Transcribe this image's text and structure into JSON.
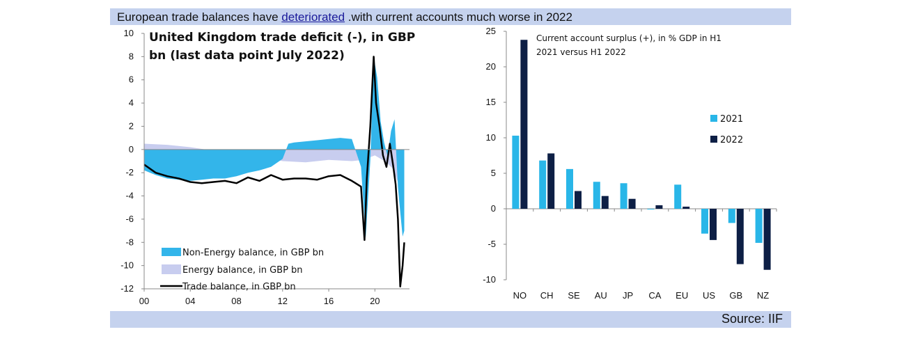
{
  "header": {
    "title_prefix": "European trade balances have ",
    "title_link": "deteriorated",
    "title_suffix": " .with current accounts much worse in 2022"
  },
  "footer": {
    "source": "Source: IIF"
  },
  "colors": {
    "banner": "#c5d2ee",
    "non_energy": "#33b5ea",
    "energy": "#c8cdef",
    "trade": "#000000",
    "bar_2021": "#29b6e8",
    "bar_2022": "#0d1f45"
  },
  "chart_data": [
    {
      "type": "area",
      "title_lines": [
        "United Kingdom trade deficit (-), in GBP",
        "bn (last data point July 2022)"
      ],
      "x_tick_labels": [
        "00",
        "04",
        "08",
        "12",
        "16",
        "20"
      ],
      "x_ticks": [
        2000,
        2004,
        2008,
        2012,
        2016,
        2020
      ],
      "xlim": [
        2000,
        2023
      ],
      "ylim": [
        -12,
        10
      ],
      "y_ticks": [
        10,
        8,
        6,
        4,
        2,
        0,
        -2,
        -4,
        -6,
        -8,
        -10,
        -12
      ],
      "legend_placement": "bottom-left",
      "series": [
        {
          "name": "Non-Energy balance, in GBP bn",
          "x": [
            2000,
            2001,
            2002,
            2003,
            2004,
            2005,
            2006,
            2007,
            2008,
            2009,
            2010,
            2011,
            2012,
            2012.5,
            2013,
            2014,
            2015,
            2016,
            2017,
            2018,
            2018.8,
            2019.2,
            2019.6,
            2019.9,
            2020.2,
            2020.5,
            2020.8,
            2021.1,
            2021.4,
            2021.7,
            2022.0,
            2022.2,
            2022.4,
            2022.55
          ],
          "y": [
            -1.8,
            -2.2,
            -2.5,
            -2.6,
            -2.7,
            -2.6,
            -2.5,
            -2.5,
            -2.3,
            -2.0,
            -1.8,
            -1.5,
            -0.8,
            0.5,
            0.6,
            0.7,
            0.8,
            0.9,
            1.0,
            0.9,
            -1.5,
            -7.6,
            -1.0,
            8.0,
            6.2,
            2.4,
            0.6,
            -0.6,
            1.6,
            2.6,
            -3.2,
            -5.4,
            -7.5,
            -7.0
          ]
        },
        {
          "name": "Energy balance, in GBP bn",
          "x": [
            2000,
            2002,
            2004,
            2006,
            2008,
            2010,
            2012,
            2014,
            2016,
            2018,
            2019,
            2020,
            2021,
            2021.5,
            2022.0,
            2022.3,
            2022.55
          ],
          "y": [
            0.5,
            0.4,
            0.2,
            -0.1,
            -0.4,
            -0.6,
            -1.0,
            -1.1,
            -0.9,
            -1.0,
            -0.9,
            -0.5,
            -1.1,
            -1.6,
            -2.8,
            -4.0,
            -4.5
          ]
        },
        {
          "name": "Trade balance, in GBP bn",
          "x": [
            2000,
            2001,
            2002,
            2003,
            2004,
            2005,
            2006,
            2007,
            2008,
            2009,
            2010,
            2011,
            2012,
            2013,
            2014,
            2015,
            2016,
            2017,
            2018,
            2018.8,
            2019.1,
            2019.3,
            2019.6,
            2019.9,
            2020.1,
            2020.4,
            2020.7,
            2021.0,
            2021.3,
            2021.6,
            2021.8,
            2022.0,
            2022.2,
            2022.4,
            2022.55
          ],
          "y": [
            -1.3,
            -2.0,
            -2.3,
            -2.5,
            -2.8,
            -2.9,
            -2.8,
            -2.7,
            -2.9,
            -2.4,
            -2.7,
            -2.2,
            -2.6,
            -2.5,
            -2.5,
            -2.6,
            -2.3,
            -2.2,
            -2.7,
            -3.2,
            -7.8,
            -2.5,
            2.0,
            8.0,
            4.0,
            2.0,
            -0.5,
            -1.5,
            0.5,
            -1.5,
            -3.0,
            -6.0,
            -11.8,
            -10.0,
            -8.0
          ]
        }
      ]
    },
    {
      "type": "bar",
      "title_lines": [
        "Current account surplus (+), in % GDP in H1",
        "2021 versus H1 2022"
      ],
      "categories": [
        "NO",
        "CH",
        "SE",
        "AU",
        "JP",
        "CA",
        "EU",
        "US",
        "GB",
        "NZ"
      ],
      "ylim": [
        -10,
        25
      ],
      "y_ticks": [
        25,
        20,
        15,
        10,
        5,
        0,
        -5,
        -10
      ],
      "legend_placement": "right",
      "series": [
        {
          "name": "2021",
          "values": [
            10.3,
            6.8,
            5.6,
            3.8,
            3.6,
            -0.1,
            3.4,
            -3.5,
            -2.0,
            -4.8
          ]
        },
        {
          "name": "2022",
          "values": [
            23.8,
            7.8,
            2.5,
            1.8,
            1.4,
            0.5,
            0.3,
            -4.4,
            -7.8,
            -8.6
          ]
        }
      ]
    }
  ]
}
